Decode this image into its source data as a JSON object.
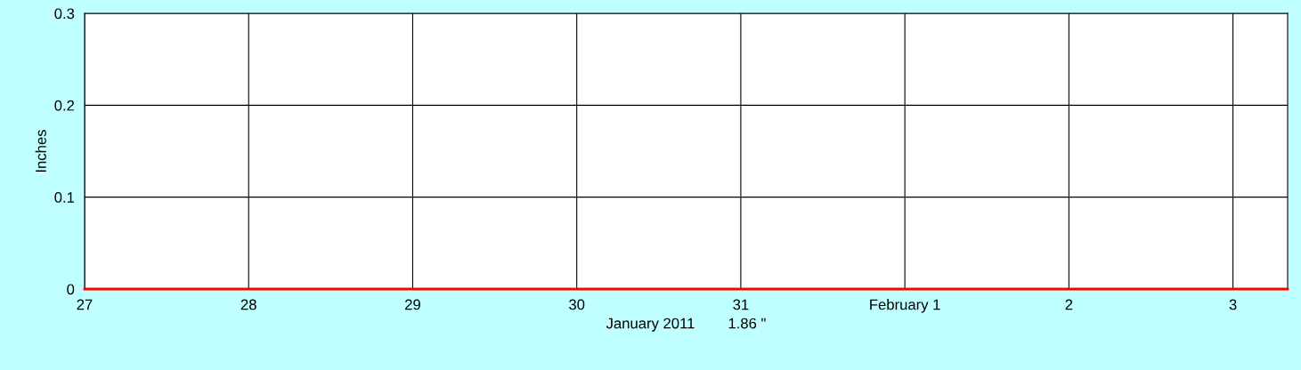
{
  "chart_data": {
    "type": "line",
    "xlabel": "January 2011        1.86 \"",
    "ylabel": "Inches",
    "x": [
      "2011-01-27",
      "2011-01-28",
      "2011-01-29",
      "2011-01-30",
      "2011-01-31",
      "2011-02-01",
      "2011-02-02",
      "2011-02-03",
      "2011-02-03T08:00"
    ],
    "series": [
      {
        "color": "#ff0000",
        "values": [
          0,
          0,
          0,
          0,
          0,
          0,
          0,
          0,
          0
        ]
      }
    ],
    "xlim": [
      "2011-01-27",
      "2011-02-03T08:00"
    ],
    "xticks": [
      {
        "value": "2011-01-27",
        "label": "27"
      },
      {
        "value": "2011-01-28",
        "label": "28"
      },
      {
        "value": "2011-01-29",
        "label": "29"
      },
      {
        "value": "2011-01-30",
        "label": "30"
      },
      {
        "value": "2011-01-31",
        "label": "31"
      },
      {
        "value": "2011-02-01",
        "label": "February 1"
      },
      {
        "value": "2011-02-02",
        "label": "2"
      },
      {
        "value": "2011-02-03",
        "label": "3"
      }
    ],
    "ylim": [
      0,
      0.3
    ],
    "yticks": [
      0,
      0.1,
      0.2,
      0.3
    ],
    "grid": true,
    "marker": "none",
    "line_style": "solid"
  }
}
